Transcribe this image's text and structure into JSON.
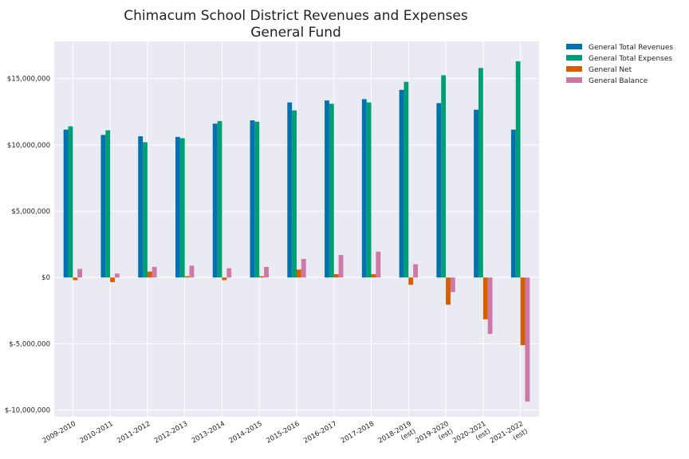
{
  "chart_data": {
    "type": "bar",
    "title": "Chimacum School District Revenues and Expenses",
    "subtitle": "General Fund",
    "xlabel": "",
    "ylabel": "",
    "ylim": [
      -10500000,
      17800000
    ],
    "grid": true,
    "legend_position": "outside-top-right",
    "categories": [
      [
        "2009-2010"
      ],
      [
        "2010-2011"
      ],
      [
        "2011-2012"
      ],
      [
        "2012-2013"
      ],
      [
        "2013-2014"
      ],
      [
        "2014-2015"
      ],
      [
        "2015-2016"
      ],
      [
        "2016-2017"
      ],
      [
        "2017-2018"
      ],
      [
        "2018-2019",
        "(est)"
      ],
      [
        "2019-2020",
        "(est)"
      ],
      [
        "2020-2021",
        "(est)"
      ],
      [
        "2021-2022",
        "(est)"
      ]
    ],
    "y_ticks": [
      -10000000,
      -5000000,
      0,
      5000000,
      10000000,
      15000000
    ],
    "y_tick_labels": [
      "$-10,000,000",
      "$-5,000,000",
      "$0",
      "$5,000,000",
      "$10,000,000",
      "$15,000,000"
    ],
    "series": [
      {
        "name": "General Total Revenues",
        "color": "#0072b2",
        "values": [
          11150000,
          10750000,
          10650000,
          10600000,
          11600000,
          11850000,
          13200000,
          13350000,
          13450000,
          14150000,
          13150000,
          12650000,
          11150000
        ]
      },
      {
        "name": "General Total Expenses",
        "color": "#009e73",
        "values": [
          11400000,
          11100000,
          10200000,
          10500000,
          11800000,
          11750000,
          12600000,
          13100000,
          13200000,
          14750000,
          15250000,
          15800000,
          16300000
        ]
      },
      {
        "name": "General Net",
        "color": "#d55e00",
        "values": [
          -200000,
          -350000,
          450000,
          100000,
          -200000,
          100000,
          600000,
          250000,
          250000,
          -550000,
          -2050000,
          -3150000,
          -5100000
        ]
      },
      {
        "name": "General Balance",
        "color": "#cc79a7",
        "values": [
          650000,
          300000,
          800000,
          900000,
          700000,
          800000,
          1400000,
          1700000,
          1950000,
          1000000,
          -1100000,
          -4250000,
          -9350000
        ]
      }
    ]
  }
}
